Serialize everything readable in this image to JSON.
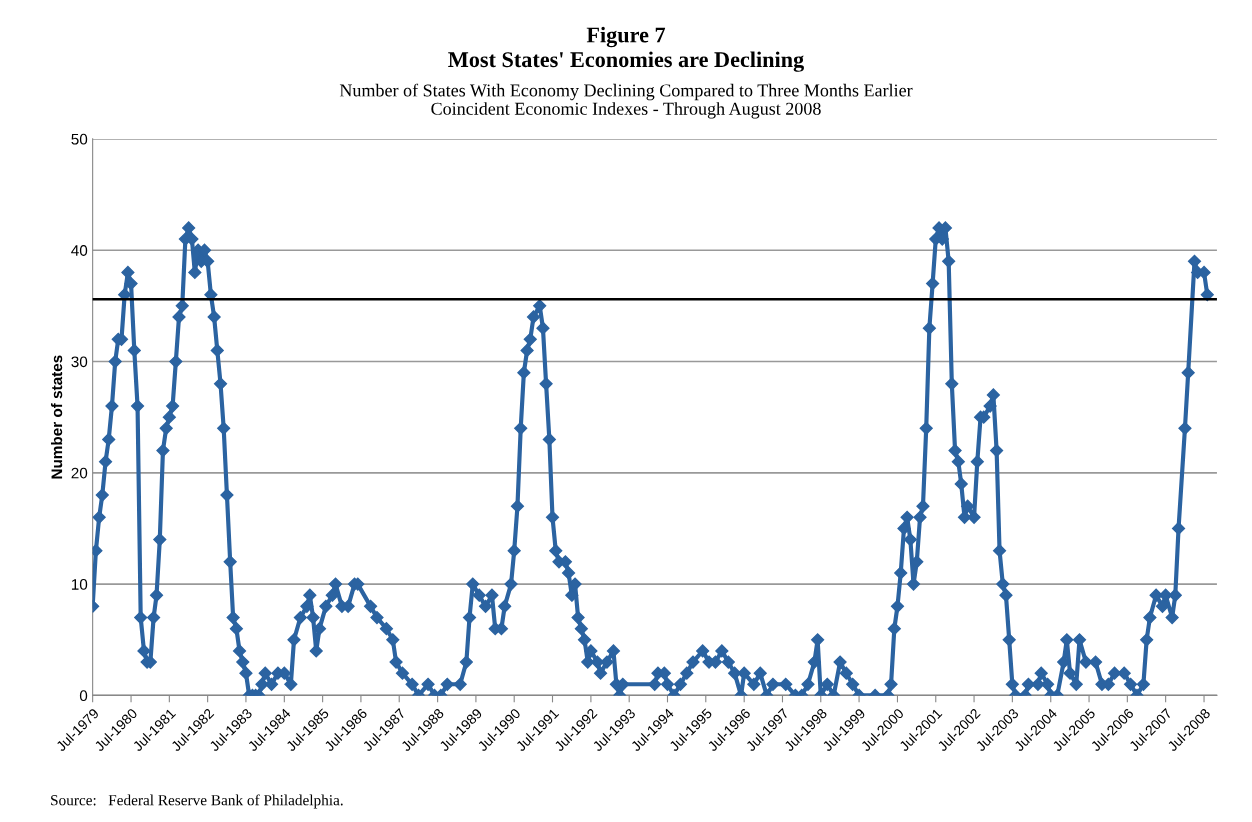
{
  "chart_data": {
    "type": "line",
    "title": "Figure 7\nMost States' Economies are Declining",
    "subtitle": "Number of States With Economy Declining Compared to Three Months Earlier\nCoincident Economic Indexes - Through August 2008",
    "ylabel": "Number of states",
    "annotations": [
      "Source:   Federal Reserve Bank of Philadelphia."
    ],
    "x": [
      "1979-07",
      "1979-08",
      "1979-09",
      "1979-10",
      "1979-11",
      "1979-12",
      "1980-01",
      "1980-02",
      "1980-03",
      "1980-04",
      "1980-05",
      "1980-06",
      "1980-07",
      "1980-08",
      "1980-09",
      "1980-10",
      "1980-11",
      "1980-12",
      "1981-01",
      "1981-02",
      "1981-03",
      "1981-04",
      "1981-05",
      "1981-06",
      "1981-07",
      "1981-08",
      "1981-09",
      "1981-10",
      "1981-11",
      "1981-12",
      "1982-01",
      "1982-02",
      "1982-03",
      "1982-04",
      "1982-05",
      "1982-06",
      "1982-07",
      "1982-08",
      "1982-09",
      "1982-10",
      "1982-11",
      "1982-12",
      "1983-01",
      "1983-02",
      "1983-03",
      "1983-04",
      "1983-05",
      "1983-06",
      "1983-07",
      "1983-08",
      "1983-09",
      "1983-10",
      "1983-11",
      "1983-12",
      "1984-01",
      "1984-03",
      "1984-05",
      "1984-07",
      "1984-09",
      "1984-10",
      "1984-12",
      "1985-02",
      "1985-03",
      "1985-04",
      "1985-05",
      "1985-06",
      "1985-08",
      "1985-10",
      "1985-11",
      "1986-01",
      "1986-03",
      "1986-05",
      "1986-06",
      "1986-10",
      "1986-12",
      "1987-03",
      "1987-05",
      "1987-06",
      "1987-08",
      "1987-11",
      "1988-01",
      "1988-04",
      "1988-06",
      "1988-08",
      "1988-10",
      "1989-02",
      "1989-04",
      "1989-05",
      "1989-06",
      "1989-08",
      "1989-10",
      "1989-12",
      "1990-01",
      "1990-03",
      "1990-04",
      "1990-06",
      "1990-07",
      "1990-08",
      "1990-09",
      "1990-10",
      "1990-11",
      "1990-12",
      "1991-01",
      "1991-03",
      "1991-04",
      "1991-05",
      "1991-06",
      "1991-07",
      "1991-08",
      "1991-09",
      "1991-11",
      "1991-12",
      "1992-01",
      "1992-02",
      "1992-03",
      "1992-04",
      "1992-05",
      "1992-06",
      "1992-07",
      "1992-09",
      "1992-10",
      "1992-12",
      "1993-02",
      "1993-03",
      "1993-04",
      "1993-05",
      "1994-03",
      "1994-04",
      "1994-06",
      "1994-07",
      "1994-09",
      "1994-11",
      "1995-01",
      "1995-03",
      "1995-06",
      "1995-08",
      "1995-10",
      "1995-12",
      "1996-02",
      "1996-04",
      "1996-06",
      "1996-07",
      "1996-10",
      "1996-12",
      "1997-02",
      "1997-04",
      "1997-08",
      "1997-11",
      "1998-01",
      "1998-03",
      "1998-05",
      "1998-06",
      "1998-07",
      "1998-09",
      "1998-11",
      "1999-01",
      "1999-03",
      "1999-05",
      "1999-07",
      "1999-12",
      "2000-04",
      "2000-05",
      "2000-06",
      "2000-07",
      "2000-08",
      "2000-09",
      "2000-10",
      "2000-11",
      "2000-12",
      "2001-01",
      "2001-02",
      "2001-03",
      "2001-04",
      "2001-05",
      "2001-06",
      "2001-07",
      "2001-08",
      "2001-09",
      "2001-10",
      "2001-11",
      "2001-12",
      "2002-01",
      "2002-02",
      "2002-03",
      "2002-04",
      "2002-05",
      "2002-07",
      "2002-08",
      "2002-09",
      "2002-10",
      "2002-12",
      "2003-01",
      "2003-02",
      "2003-03",
      "2003-04",
      "2003-05",
      "2003-06",
      "2003-07",
      "2003-08",
      "2003-11",
      "2003-12",
      "2004-03",
      "2004-04",
      "2004-06",
      "2004-07",
      "2004-09",
      "2004-11",
      "2004-12",
      "2005-01",
      "2005-03",
      "2005-04",
      "2005-06",
      "2005-09",
      "2005-11",
      "2006-01",
      "2006-03",
      "2006-06",
      "2006-08",
      "2006-10",
      "2006-12",
      "2007-01",
      "2007-02",
      "2007-04",
      "2007-06",
      "2007-07",
      "2007-09",
      "2007-10",
      "2007-11",
      "2008-01",
      "2008-02",
      "2008-04",
      "2008-05",
      "2008-07",
      "2008-08"
    ],
    "series": [
      {
        "color": "#2b63a1",
        "values": [
          8,
          13,
          16,
          18,
          21,
          23,
          26,
          30,
          32,
          32,
          36,
          38,
          37,
          31,
          26,
          7,
          4,
          3,
          3,
          7,
          9,
          14,
          22,
          24,
          25,
          26,
          30,
          34,
          35,
          41,
          42,
          41,
          38,
          40,
          39,
          40,
          39,
          36,
          34,
          31,
          28,
          24,
          18,
          12,
          7,
          6,
          4,
          3,
          2,
          0,
          0,
          0,
          0,
          1,
          2,
          1,
          2,
          2,
          1,
          5,
          7,
          8,
          9,
          7,
          4,
          6,
          8,
          9,
          10,
          8,
          8,
          10,
          10,
          8,
          7,
          6,
          5,
          3,
          2,
          1,
          0,
          1,
          0,
          0,
          1,
          1,
          3,
          7,
          10,
          9,
          8,
          9,
          6,
          6,
          8,
          10,
          13,
          17,
          24,
          29,
          31,
          32,
          34,
          35,
          33,
          28,
          23,
          16,
          13,
          12,
          12,
          11,
          9,
          10,
          7,
          6,
          5,
          3,
          4,
          3,
          2,
          3,
          4,
          1,
          0,
          1,
          1,
          2,
          2,
          1,
          0,
          1,
          2,
          3,
          4,
          3,
          3,
          4,
          3,
          2,
          0,
          2,
          1,
          2,
          0,
          1,
          1,
          0,
          0,
          1,
          3,
          5,
          0,
          1,
          0,
          3,
          2,
          1,
          0,
          0,
          0,
          1,
          6,
          8,
          11,
          15,
          16,
          14,
          10,
          12,
          16,
          17,
          24,
          33,
          37,
          41,
          42,
          41,
          42,
          39,
          28,
          22,
          21,
          19,
          16,
          17,
          16,
          21,
          25,
          25,
          26,
          27,
          22,
          13,
          10,
          9,
          5,
          1,
          0,
          0,
          1,
          1,
          2,
          1,
          0,
          0,
          3,
          5,
          2,
          1,
          5,
          3,
          3,
          1,
          1,
          2,
          2,
          1,
          0,
          1,
          5,
          7,
          9,
          8,
          9,
          7,
          9,
          15,
          24,
          29,
          39,
          38,
          38,
          36
        ]
      }
    ],
    "xlim": [
      "1979-07",
      "2008-11"
    ],
    "xticks": [
      {
        "value": "1979-07",
        "label": "Jul-1979"
      },
      {
        "value": "1980-07",
        "label": "Jul-1980"
      },
      {
        "value": "1981-07",
        "label": "Jul-1981"
      },
      {
        "value": "1982-07",
        "label": "Jul-1982"
      },
      {
        "value": "1983-07",
        "label": "Jul-1983"
      },
      {
        "value": "1984-07",
        "label": "Jul-1984"
      },
      {
        "value": "1985-07",
        "label": "Jul-1985"
      },
      {
        "value": "1986-07",
        "label": "Jul-1986"
      },
      {
        "value": "1987-07",
        "label": "Jul-1987"
      },
      {
        "value": "1988-07",
        "label": "Jul-1988"
      },
      {
        "value": "1989-07",
        "label": "Jul-1989"
      },
      {
        "value": "1990-07",
        "label": "Jul-1990"
      },
      {
        "value": "1991-07",
        "label": "Jul-1991"
      },
      {
        "value": "1992-07",
        "label": "Jul-1992"
      },
      {
        "value": "1993-07",
        "label": "Jul-1993"
      },
      {
        "value": "1994-07",
        "label": "Jul-1994"
      },
      {
        "value": "1995-07",
        "label": "Jul-1995"
      },
      {
        "value": "1996-07",
        "label": "Jul-1996"
      },
      {
        "value": "1997-07",
        "label": "Jul-1997"
      },
      {
        "value": "1998-07",
        "label": "Jul-1998"
      },
      {
        "value": "1999-07",
        "label": "Jul-1999"
      },
      {
        "value": "2000-07",
        "label": "Jul-2000"
      },
      {
        "value": "2001-07",
        "label": "Jul-2001"
      },
      {
        "value": "2002-07",
        "label": "Jul-2002"
      },
      {
        "value": "2003-07",
        "label": "Jul-2003"
      },
      {
        "value": "2004-07",
        "label": "Jul-2004"
      },
      {
        "value": "2005-07",
        "label": "Jul-2005"
      },
      {
        "value": "2006-07",
        "label": "Jul-2006"
      },
      {
        "value": "2007-07",
        "label": "Jul-2007"
      },
      {
        "value": "2008-07",
        "label": "Jul-2008"
      }
    ],
    "ylim": [
      0,
      50
    ],
    "yticks": [
      0,
      10,
      20,
      30,
      40,
      50
    ],
    "ref_lines": [
      {
        "axis": "y",
        "value": 35.6,
        "color": "#000000",
        "line_style": "solid"
      }
    ],
    "grid": "y",
    "legend": false,
    "marker": "diamond",
    "line_style": "solid"
  }
}
